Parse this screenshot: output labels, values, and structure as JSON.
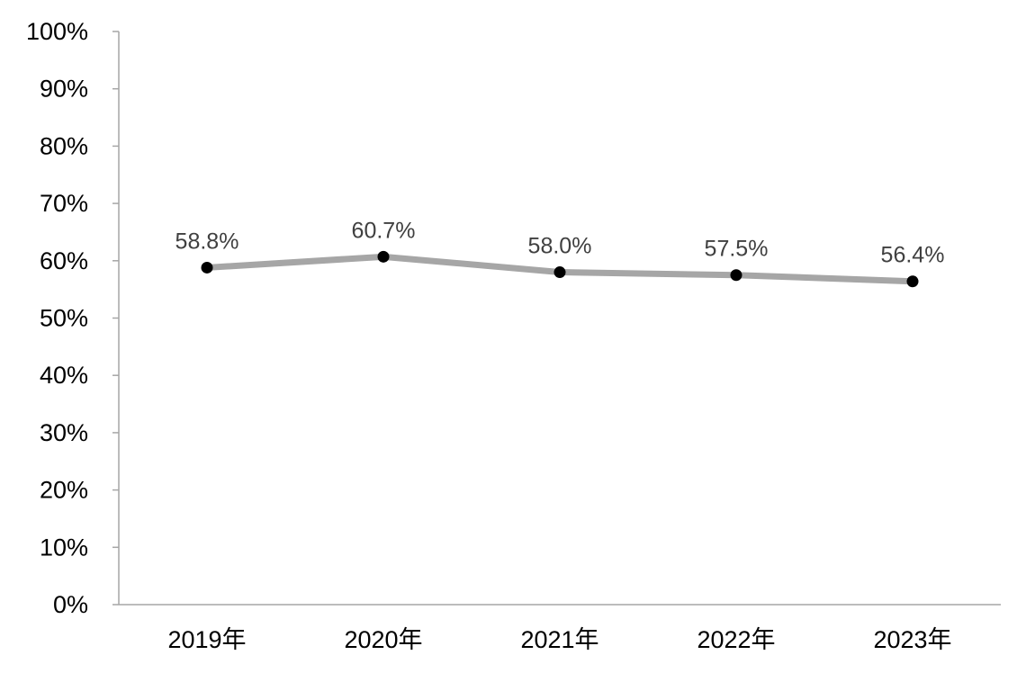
{
  "chart_data": {
    "type": "line",
    "title": "",
    "xlabel": "",
    "ylabel": "",
    "categories": [
      "2019年",
      "2020年",
      "2021年",
      "2022年",
      "2023年"
    ],
    "series": [
      {
        "values": [
          58.8,
          60.7,
          58.0,
          57.5,
          56.4
        ],
        "data_labels": [
          "58.8%",
          "60.7%",
          "58.0%",
          "57.5%",
          "56.4%"
        ],
        "line_color": "#a6a6a6",
        "marker_color": "#000000"
      }
    ],
    "ylim": [
      0,
      100
    ],
    "yticks": [
      0,
      10,
      20,
      30,
      40,
      50,
      60,
      70,
      80,
      90,
      100
    ],
    "ytick_labels": [
      "0%",
      "10%",
      "20%",
      "30%",
      "40%",
      "50%",
      "60%",
      "70%",
      "80%",
      "90%",
      "100%"
    ],
    "grid": false,
    "legend": "none"
  }
}
